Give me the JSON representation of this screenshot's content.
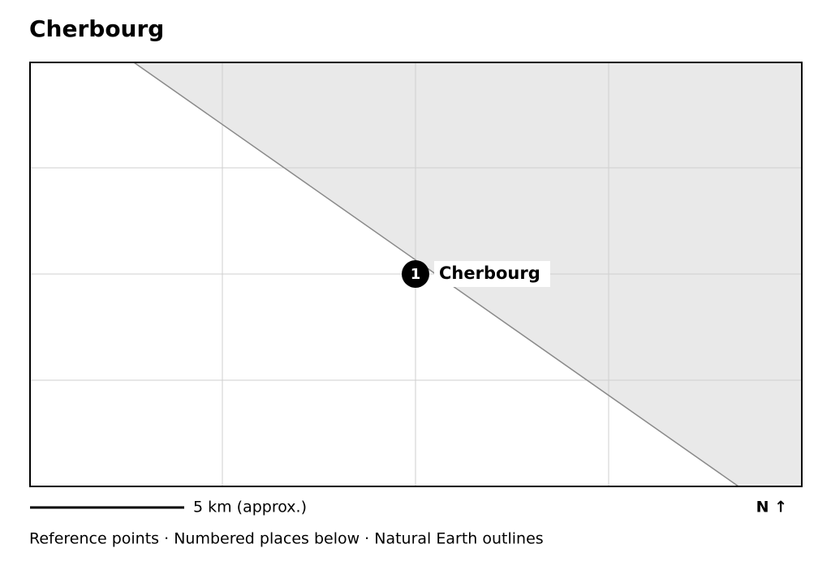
{
  "title": "Cherbourg",
  "places": [
    {
      "number": "1",
      "label": "Cherbourg"
    }
  ],
  "scale_bar": "5 km (approx.)",
  "north": "N ↑",
  "footer": "Reference points · Numbered places below · Natural Earth outlines"
}
